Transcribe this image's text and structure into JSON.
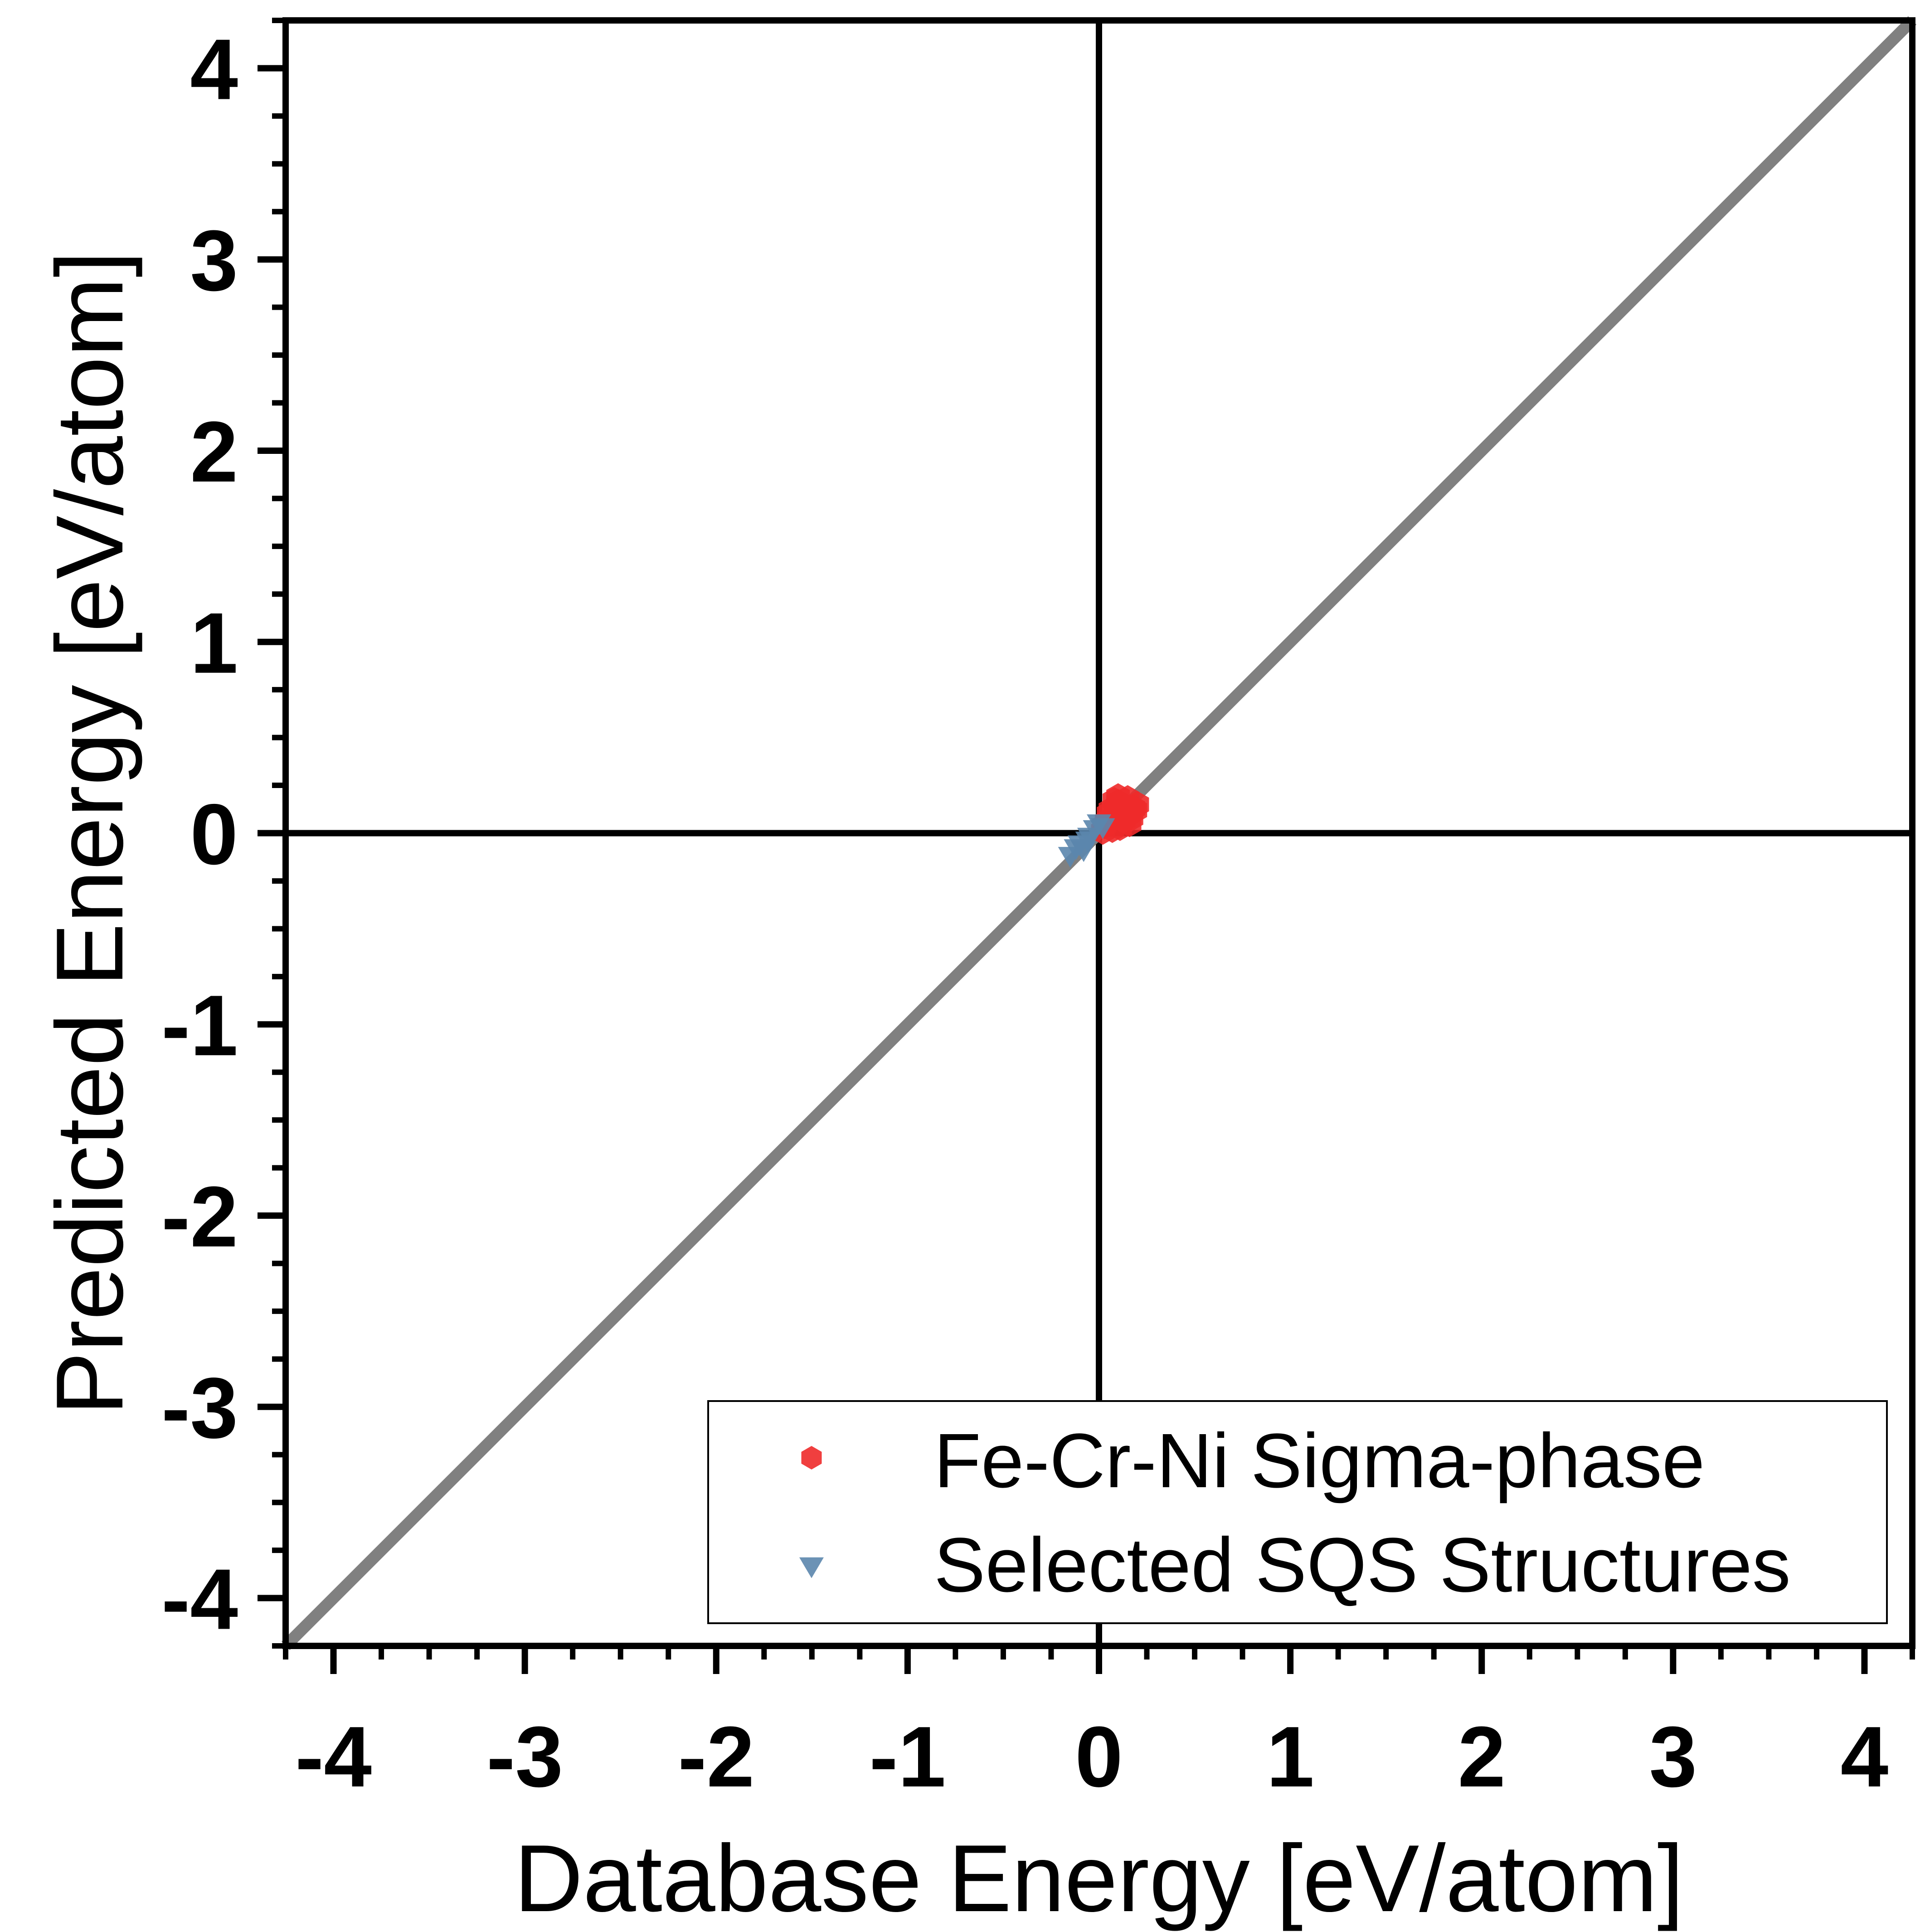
{
  "chart_data": {
    "type": "scatter",
    "title": "",
    "xlabel": "Database Energy [eV/atom]",
    "ylabel": "Predicted Energy [eV/atom]",
    "xlim": [
      -4.25,
      4.25
    ],
    "ylim": [
      -4.25,
      4.25
    ],
    "xticks": [
      -4,
      -3,
      -2,
      -1,
      0,
      1,
      2,
      3,
      4
    ],
    "yticks": [
      -4,
      -3,
      -2,
      -1,
      0,
      1,
      2,
      3,
      4
    ],
    "xtick_labels": [
      "-4",
      "-3",
      "-2",
      "-1",
      "0",
      "1",
      "2",
      "3",
      "4"
    ],
    "ytick_labels": [
      "-4",
      "-3",
      "-2",
      "-1",
      "0",
      "1",
      "2",
      "3",
      "4"
    ],
    "minor_tick_step": 0.25,
    "grid": false,
    "zero_lines": true,
    "reference_line": {
      "type": "y=x",
      "color": "#808080"
    },
    "legend": {
      "position": "bottom-right"
    },
    "series": [
      {
        "name": "Fe-Cr-Ni Sigma-phase",
        "marker": "hexagon",
        "color": "#ee2a2a",
        "points": [
          [
            0.02,
            0.01
          ],
          [
            0.04,
            0.06
          ],
          [
            0.06,
            0.12
          ],
          [
            0.08,
            0.17
          ],
          [
            0.1,
            0.19
          ],
          [
            0.12,
            0.14
          ],
          [
            0.14,
            0.09
          ],
          [
            0.16,
            0.05
          ],
          [
            0.18,
            0.13
          ],
          [
            0.2,
            0.15
          ],
          [
            0.11,
            0.03
          ],
          [
            0.07,
            0.02
          ],
          [
            0.15,
            0.18
          ],
          [
            0.05,
            0.1
          ],
          [
            0.13,
            0.07
          ],
          [
            0.09,
            0.11
          ],
          [
            0.17,
            0.08
          ],
          [
            0.03,
            0.04
          ],
          [
            0.19,
            0.12
          ],
          [
            0.1,
            0.16
          ]
        ]
      },
      {
        "name": "Selected SQS Structures",
        "marker": "triangle-down",
        "color": "#5b86ad",
        "points": [
          [
            -0.15,
            -0.12
          ],
          [
            -0.1,
            -0.06
          ],
          [
            -0.08,
            -0.09
          ],
          [
            -0.05,
            -0.02
          ],
          [
            -0.02,
            0.02
          ],
          [
            0.0,
            0.05
          ],
          [
            0.02,
            0.03
          ],
          [
            -0.12,
            -0.08
          ],
          [
            -0.06,
            -0.04
          ]
        ]
      }
    ]
  }
}
